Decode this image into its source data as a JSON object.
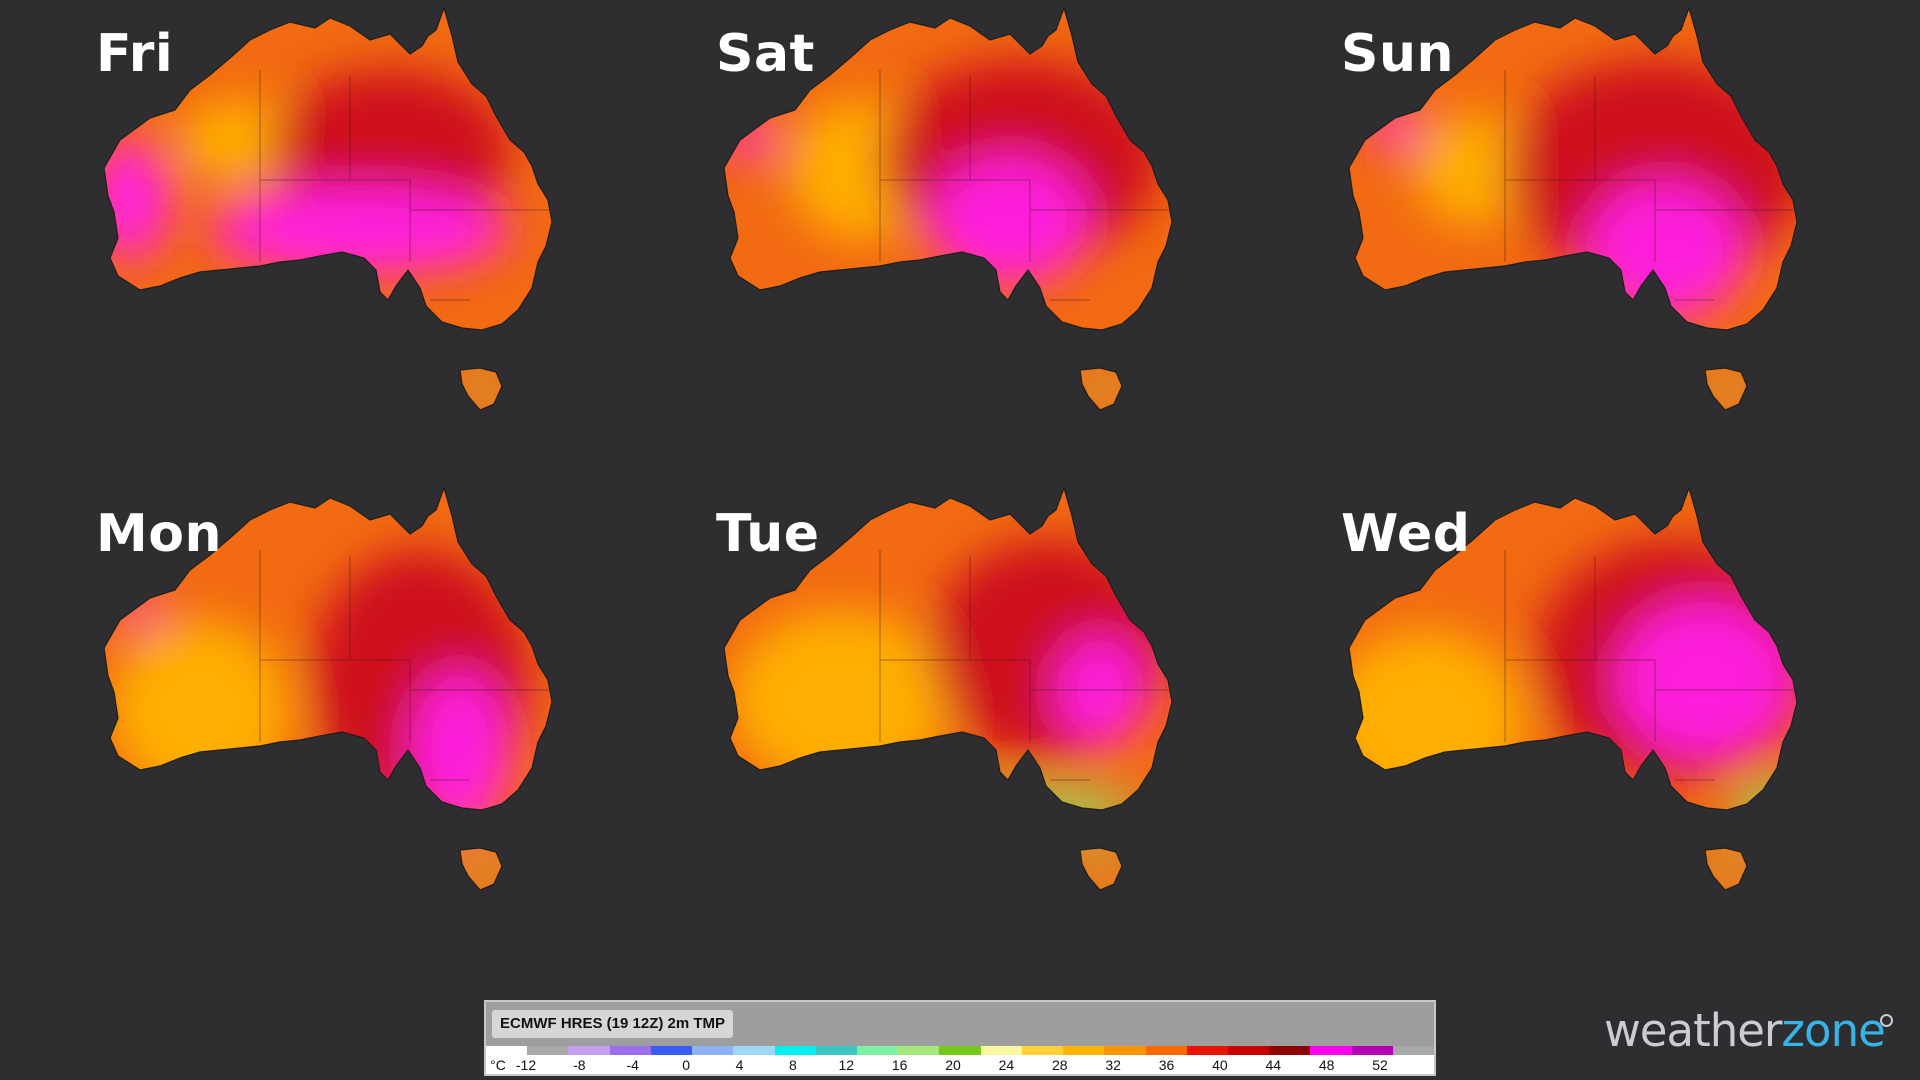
{
  "panels": [
    {
      "day": "Fri",
      "heat": [
        {
          "cx": 270,
          "cy": 230,
          "rx": 150,
          "ry": 45,
          "k": "m"
        },
        {
          "cx": 40,
          "cy": 200,
          "rx": 40,
          "ry": 60,
          "k": "m"
        },
        {
          "cx": 300,
          "cy": 150,
          "rx": 120,
          "ry": 80,
          "k": "d"
        },
        {
          "cx": 150,
          "cy": 140,
          "rx": 60,
          "ry": 40,
          "k": "y"
        }
      ]
    },
    {
      "day": "Sat",
      "heat": [
        {
          "cx": 300,
          "cy": 220,
          "rx": 80,
          "ry": 65,
          "k": "m"
        },
        {
          "cx": 310,
          "cy": 160,
          "rx": 140,
          "ry": 100,
          "k": "d"
        },
        {
          "cx": 150,
          "cy": 170,
          "rx": 70,
          "ry": 70,
          "k": "y"
        },
        {
          "cx": 40,
          "cy": 140,
          "rx": 25,
          "ry": 20,
          "k": "m"
        }
      ]
    },
    {
      "day": "Sun",
      "heat": [
        {
          "cx": 330,
          "cy": 250,
          "rx": 80,
          "ry": 70,
          "k": "m"
        },
        {
          "cx": 320,
          "cy": 170,
          "rx": 150,
          "ry": 110,
          "k": "d"
        },
        {
          "cx": 140,
          "cy": 170,
          "rx": 60,
          "ry": 55,
          "k": "y"
        },
        {
          "cx": 60,
          "cy": 130,
          "rx": 25,
          "ry": 20,
          "k": "m"
        }
      ]
    },
    {
      "day": "Mon",
      "heat": [
        {
          "cx": 370,
          "cy": 270,
          "rx": 50,
          "ry": 80,
          "k": "m"
        },
        {
          "cx": 330,
          "cy": 200,
          "rx": 110,
          "ry": 130,
          "k": "d"
        },
        {
          "cx": 110,
          "cy": 230,
          "rx": 90,
          "ry": 90,
          "k": "y"
        },
        {
          "cx": 50,
          "cy": 130,
          "rx": 20,
          "ry": 15,
          "k": "m"
        }
      ]
    },
    {
      "day": "Tue",
      "heat": [
        {
          "cx": 390,
          "cy": 210,
          "rx": 45,
          "ry": 55,
          "k": "m"
        },
        {
          "cx": 340,
          "cy": 170,
          "rx": 120,
          "ry": 110,
          "k": "d"
        },
        {
          "cx": 130,
          "cy": 220,
          "rx": 110,
          "ry": 90,
          "k": "y"
        },
        {
          "cx": 340,
          "cy": 330,
          "rx": 90,
          "ry": 20,
          "k": "g"
        }
      ]
    },
    {
      "day": "Wed",
      "heat": [
        {
          "cx": 370,
          "cy": 200,
          "rx": 90,
          "ry": 80,
          "k": "m"
        },
        {
          "cx": 340,
          "cy": 180,
          "rx": 140,
          "ry": 120,
          "k": "d"
        },
        {
          "cx": 90,
          "cy": 240,
          "rx": 100,
          "ry": 90,
          "k": "y"
        },
        {
          "cx": 440,
          "cy": 330,
          "rx": 40,
          "ry": 25,
          "k": "g"
        }
      ]
    }
  ],
  "legend": {
    "title": "ECMWF HRES (19 12Z) 2m TMP",
    "unit": "°C",
    "ticks": [
      "-12",
      "-8",
      "-4",
      "0",
      "4",
      "8",
      "12",
      "16",
      "20",
      "24",
      "28",
      "32",
      "36",
      "40",
      "44",
      "48",
      "52"
    ],
    "colors": [
      "#ffffff",
      "#a8a8a8",
      "#c6a0f0",
      "#9b6ff0",
      "#3b5bf5",
      "#8fb2f7",
      "#9fd7f7",
      "#00f0f0",
      "#3cc6c3",
      "#7ef2a4",
      "#a7e87a",
      "#78c81c",
      "#f7f7a0",
      "#ffd23c",
      "#ffb400",
      "#ff9600",
      "#ff6a00",
      "#e81400",
      "#c80000",
      "#8c0000",
      "#ff00f0",
      "#b400b4",
      "#a8a8a8"
    ]
  },
  "brand": {
    "part1": "weather",
    "part2": "zone"
  },
  "colors": {
    "background": "#2e2e30",
    "accent": "#37b4e6"
  }
}
